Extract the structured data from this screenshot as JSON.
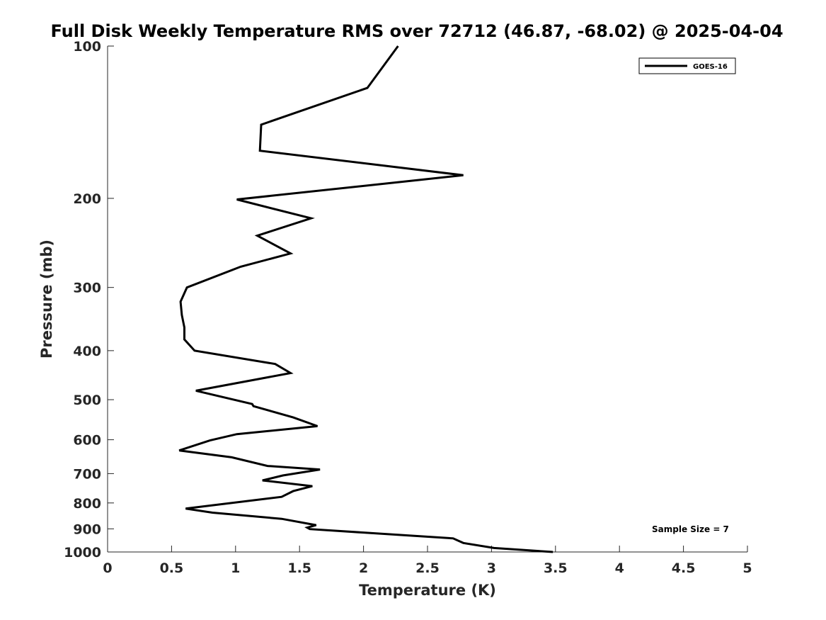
{
  "chart_data": {
    "type": "line",
    "title": "Full Disk Weekly Temperature RMS over 72712 (46.87, -68.02) @ 2025-04-04",
    "xlabel": "Temperature (K)",
    "ylabel": "Pressure (mb)",
    "xlim": [
      0,
      5
    ],
    "ylim": [
      100,
      1000
    ],
    "y_scale": "log",
    "y_reversed": true,
    "x_ticks": [
      "0",
      "0.5",
      "1",
      "1.5",
      "2",
      "2.5",
      "3",
      "3.5",
      "4",
      "4.5",
      "5"
    ],
    "y_ticks": [
      "100",
      "200",
      "300",
      "400",
      "500",
      "600",
      "700",
      "800",
      "900",
      "1000"
    ],
    "grid": false,
    "legend_position": "top-right",
    "series": [
      {
        "name": "GOES-16",
        "color": "#000000",
        "x": [
          2.27,
          2.03,
          1.2,
          1.19,
          2.78,
          1.01,
          1.59,
          1.17,
          1.43,
          1.04,
          0.62,
          0.57,
          0.58,
          0.6,
          0.6,
          0.68,
          1.31,
          1.43,
          0.69,
          1.13,
          1.14,
          1.45,
          1.64,
          1.01,
          0.8,
          0.56,
          0.97,
          1.25,
          1.66,
          1.37,
          1.21,
          1.6,
          1.45,
          1.36,
          0.61,
          0.82,
          1.36,
          1.63,
          1.56,
          1.58,
          2.7,
          2.78,
          3.02,
          3.48
        ],
        "y": [
          100,
          121,
          143,
          161,
          180,
          201,
          219,
          237,
          257,
          273,
          300,
          320,
          340,
          360,
          380,
          400,
          425,
          443,
          480,
          510,
          515,
          542,
          564,
          585,
          602,
          630,
          650,
          676,
          687,
          706,
          722,
          741,
          758,
          778,
          821,
          836,
          860,
          885,
          895,
          901,
          940,
          960,
          982,
          1000
        ]
      }
    ],
    "annotations": [
      "Sample Size = 7"
    ]
  }
}
